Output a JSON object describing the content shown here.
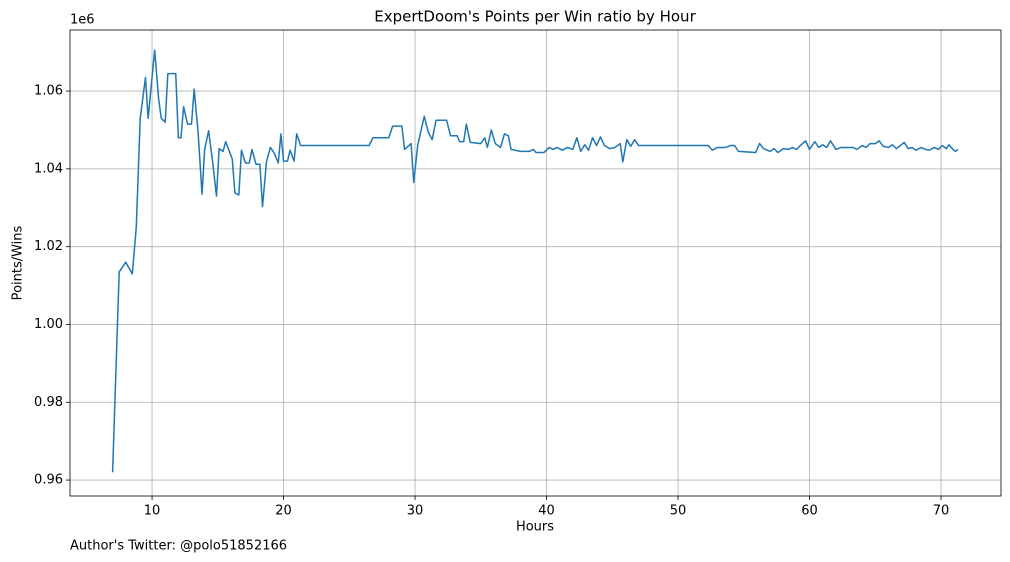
{
  "chart_data": {
    "type": "line",
    "title": "ExpertDoom's Points per Win ratio by Hour",
    "xlabel": "Hours",
    "ylabel": "Points/Wins",
    "y_offset_text": "1e6",
    "caption": "Author's Twitter: @polo51852166",
    "color": "#1f77b4",
    "grid": true,
    "xlim": [
      3.76,
      74.56
    ],
    "ylim": [
      0.9559,
      1.0757
    ],
    "xticks": [
      10,
      20,
      30,
      40,
      50,
      60,
      70
    ],
    "yticks": [
      0.96,
      0.98,
      {
        "value": 1,
        "label": "1.00"
      },
      1.02,
      1.04,
      1.06
    ],
    "x": [
      7.0,
      7.5,
      8.0,
      8.5,
      8.8,
      9.1,
      9.5,
      9.7,
      10.2,
      10.5,
      10.7,
      11.0,
      11.2,
      11.8,
      12.0,
      12.2,
      12.4,
      12.7,
      13.0,
      13.2,
      13.5,
      13.8,
      14.0,
      14.3,
      14.6,
      14.9,
      15.1,
      15.4,
      15.6,
      16.1,
      16.3,
      16.6,
      16.8,
      17.1,
      17.4,
      17.6,
      17.9,
      18.2,
      18.4,
      18.7,
      19.0,
      19.3,
      19.6,
      19.8,
      20.0,
      20.3,
      20.5,
      20.8,
      21.0,
      21.3,
      26.5,
      26.8,
      28.0,
      28.3,
      29.0,
      29.2,
      29.7,
      29.9,
      30.2,
      30.7,
      31.0,
      31.3,
      31.6,
      32.4,
      32.7,
      33.2,
      33.4,
      33.7,
      33.9,
      34.2,
      35.0,
      35.3,
      35.5,
      35.8,
      36.1,
      36.5,
      36.8,
      37.1,
      37.3,
      38.0,
      38.7,
      39.0,
      39.2,
      39.8,
      40.2,
      40.5,
      40.8,
      41.2,
      41.6,
      42.0,
      42.3,
      42.6,
      42.9,
      43.2,
      43.5,
      43.8,
      44.1,
      44.4,
      44.8,
      45.2,
      45.6,
      45.8,
      46.1,
      46.4,
      46.7,
      47.0,
      52.3,
      52.6,
      53.0,
      53.6,
      54.0,
      54.3,
      54.6,
      55.9,
      56.2,
      56.5,
      57.0,
      57.3,
      57.6,
      58.0,
      58.4,
      58.7,
      59.0,
      59.3,
      59.7,
      60.0,
      60.4,
      60.7,
      61.0,
      61.3,
      61.6,
      62.0,
      62.4,
      63.3,
      63.6,
      64.0,
      64.3,
      64.6,
      65.0,
      65.3,
      65.6,
      66.0,
      66.3,
      66.6,
      66.9,
      67.2,
      67.5,
      67.8,
      68.1,
      68.5,
      68.8,
      69.1,
      69.5,
      69.8,
      70.1,
      70.4,
      70.6,
      70.9,
      71.1,
      71.3
    ],
    "values": [
      0.962,
      1.0135,
      1.016,
      1.013,
      1.025,
      1.053,
      1.0635,
      1.053,
      1.0705,
      1.058,
      1.053,
      1.052,
      1.0645,
      1.0645,
      1.048,
      1.048,
      1.056,
      1.0515,
      1.0515,
      1.0605,
      1.0495,
      1.0335,
      1.045,
      1.0498,
      1.042,
      1.033,
      1.0452,
      1.0445,
      1.047,
      1.0425,
      1.0338,
      1.0333,
      1.0448,
      1.0415,
      1.0415,
      1.045,
      1.0412,
      1.0412,
      1.0303,
      1.0418,
      1.0455,
      1.044,
      1.0415,
      1.049,
      1.042,
      1.042,
      1.0448,
      1.042,
      1.049,
      1.046,
      1.046,
      1.048,
      1.048,
      1.051,
      1.051,
      1.045,
      1.0465,
      1.0365,
      1.046,
      1.0535,
      1.0495,
      1.0475,
      1.0525,
      1.0525,
      1.0485,
      1.0485,
      1.047,
      1.047,
      1.0515,
      1.0468,
      1.0465,
      1.048,
      1.0455,
      1.05,
      1.0465,
      1.0455,
      1.049,
      1.0485,
      1.045,
      1.0445,
      1.0445,
      1.045,
      1.0442,
      1.0442,
      1.0455,
      1.045,
      1.0455,
      1.0448,
      1.0455,
      1.045,
      1.048,
      1.0445,
      1.0462,
      1.0448,
      1.048,
      1.046,
      1.0482,
      1.046,
      1.0452,
      1.0455,
      1.0465,
      1.0418,
      1.0475,
      1.0458,
      1.0475,
      1.046,
      1.046,
      1.0448,
      1.0455,
      1.0455,
      1.046,
      1.046,
      1.0445,
      1.0442,
      1.0465,
      1.0452,
      1.0445,
      1.0452,
      1.0442,
      1.0452,
      1.045,
      1.0455,
      1.045,
      1.046,
      1.0472,
      1.045,
      1.047,
      1.0455,
      1.0462,
      1.0455,
      1.0472,
      1.045,
      1.0455,
      1.0455,
      1.045,
      1.046,
      1.0455,
      1.0465,
      1.0465,
      1.0472,
      1.0458,
      1.0455,
      1.0462,
      1.0452,
      1.046,
      1.0468,
      1.0452,
      1.0455,
      1.0448,
      1.0455,
      1.045,
      1.0448,
      1.0455,
      1.045,
      1.046,
      1.0452,
      1.0462,
      1.045,
      1.0445,
      1.045
    ]
  }
}
